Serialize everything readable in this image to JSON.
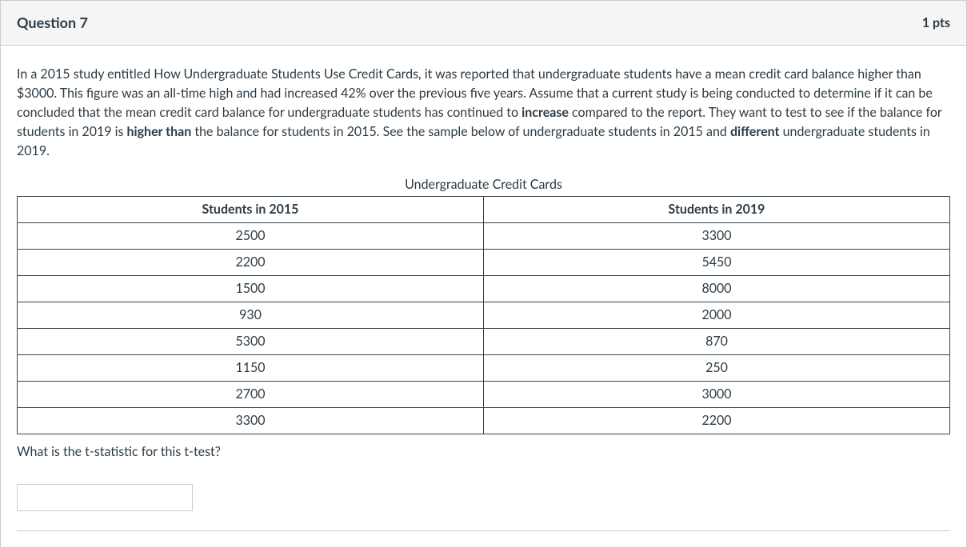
{
  "header": {
    "title": "Question 7",
    "points": "1 pts"
  },
  "question": {
    "pre1": "In a 2015 study entitled How Undergraduate Students Use Credit Cards, it was reported that undergraduate students have a mean credit card balance higher than $3000. This figure was an all-time high and had increased 42% over the previous five years. Assume that a current study is being conducted to determine if it can be concluded that the mean credit card balance for undergraduate students has continued to ",
    "bold1": "increase",
    "mid1": " compared to the report. They want to test to see if the balance for students in 2019 is ",
    "bold2": "higher than",
    "mid2": " the balance for students in 2015. See the sample below of undergraduate students in 2015 and ",
    "bold3": "different",
    "post1": " undergraduate students in 2019."
  },
  "table": {
    "caption": "Undergraduate Credit Cards",
    "columns": [
      "Students in 2015",
      "Students in 2019"
    ],
    "rows": [
      [
        "2500",
        "3300"
      ],
      [
        "2200",
        "5450"
      ],
      [
        "1500",
        "8000"
      ],
      [
        "930",
        "2000"
      ],
      [
        "5300",
        "870"
      ],
      [
        "1150",
        "250"
      ],
      [
        "2700",
        "3000"
      ],
      [
        "3300",
        "2200"
      ]
    ]
  },
  "followup": "What is the t-statistic for this t-test?",
  "answer": {
    "value": "",
    "placeholder": ""
  }
}
